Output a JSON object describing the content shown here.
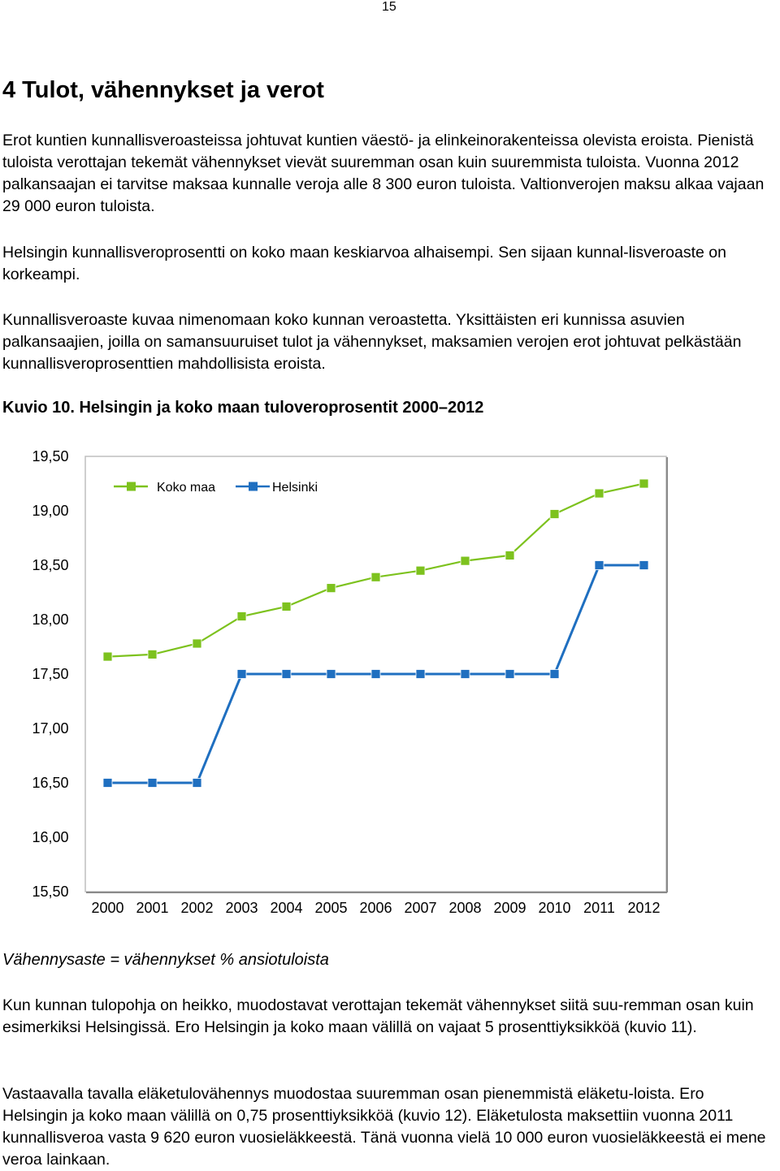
{
  "page_number": "15",
  "heading": "4 Tulot, vähennykset ja verot",
  "paragraphs": [
    "Erot kuntien kunnallisveroasteissa johtuvat kuntien väestö- ja elinkeinorakenteissa olevista eroista. Pienistä tuloista verottajan tekemät vähennykset vievät suuremman osan kuin suuremmista tuloista. Vuonna 2012 palkansaajan ei tarvitse maksaa kunnalle veroja alle 8 300 euron tuloista. Valtionverojen maksu alkaa vajaan 29 000 euron tuloista.",
    "Helsingin kunnallisveroprosentti on koko maan keskiarvoa alhaisempi. Sen sijaan kunnal-lisveroaste on korkeampi.",
    "Kunnallisveroaste kuvaa nimenomaan koko kunnan veroastetta. Yksittäisten eri kunnissa asuvien palkansaajien, joilla on samansuuruiset tulot ja vähennykset, maksamien verojen erot johtuvat pelkästään kunnallisveroprosenttien mahdollisista eroista."
  ],
  "figure_caption": "Kuvio 10. Helsingin ja koko maan tuloveroprosentit 2000–2012",
  "chart_data": {
    "type": "line",
    "title": "",
    "xlabel": "",
    "ylabel": "",
    "categories": [
      "2000",
      "2001",
      "2002",
      "2003",
      "2004",
      "2005",
      "2006",
      "2007",
      "2008",
      "2009",
      "2010",
      "2011",
      "2012"
    ],
    "ylim": [
      15.5,
      19.5
    ],
    "yticks": [
      "15,50",
      "16,00",
      "16,50",
      "17,00",
      "17,50",
      "18,00",
      "18,50",
      "19,00",
      "19,50"
    ],
    "grid": false,
    "legend_position": "top-left",
    "series": [
      {
        "name": "Koko maa",
        "color": "#7dc21e",
        "values": [
          17.66,
          17.68,
          17.78,
          18.03,
          18.12,
          18.29,
          18.39,
          18.45,
          18.54,
          18.59,
          18.97,
          19.16,
          19.25
        ]
      },
      {
        "name": "Helsinki",
        "color": "#1f6fc0",
        "values": [
          16.5,
          16.5,
          16.5,
          17.5,
          17.5,
          17.5,
          17.5,
          17.5,
          17.5,
          17.5,
          17.5,
          18.5,
          18.5
        ]
      }
    ]
  },
  "formula": "Vähennysaste = vähennykset % ansiotuloista",
  "paragraphs2": [
    "Kun kunnan tulopohja on heikko, muodostavat verottajan tekemät vähennykset siitä suu-remman osan kuin esimerkiksi Helsingissä. Ero Helsingin ja koko maan välillä on vajaat 5 prosenttiyksikköä (kuvio 11).",
    "Vastaavalla tavalla eläketulovähennys muodostaa suuremman osan pienemmistä eläketu-loista. Ero Helsingin ja koko maan välillä on 0,75 prosenttiyksikköä (kuvio 12). Eläketulosta maksettiin vuonna 2011 kunnallisveroa vasta 9 620 euron vuosieläkkeestä. Tänä vuonna vielä 10 000 euron vuosieläkkeestä ei mene veroa lainkaan."
  ]
}
